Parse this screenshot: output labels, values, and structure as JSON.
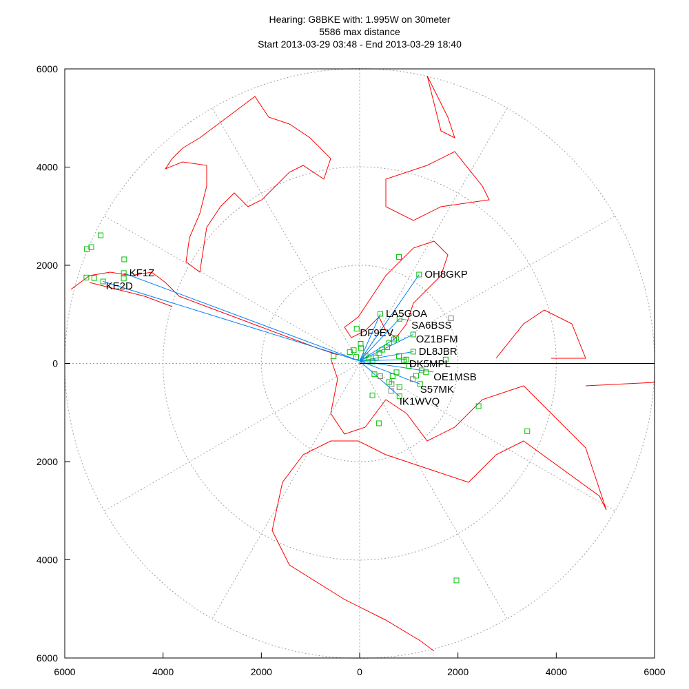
{
  "title_lines": [
    "Hearing: G8BKE with: 1.995W on 30meter",
    "5586 max distance",
    "Start 2013-03-29 03:48 - End 2013-03-29 18:40"
  ],
  "colors": {
    "coast": "#ff0000",
    "path": "#0080ff",
    "station": "#00c000",
    "other": "#808080",
    "grid": "#a0a0a0"
  },
  "chart_data": {
    "type": "scatter",
    "projection": "polar azimuthal map",
    "xlim": [
      -6000,
      6000
    ],
    "ylim": [
      -6000,
      6000
    ],
    "x_tick_labels": [
      "6000",
      "4000",
      "2000",
      "0",
      "2000",
      "4000",
      "6000"
    ],
    "y_tick_labels": [
      "6000",
      "4000",
      "2000",
      "0",
      "2000",
      "4000",
      "6000"
    ],
    "range_rings": [
      2000,
      4000,
      6000
    ],
    "grid": true,
    "home": {
      "x": 0,
      "y": 50
    },
    "labeled_stations": [
      {
        "call": "KF1Z",
        "x": -4800,
        "y": 1840
      },
      {
        "call": "KE2D",
        "x": -5220,
        "y": 1670
      },
      {
        "call": "OH8GKP",
        "x": 1210,
        "y": 1810
      },
      {
        "call": "LA5GOA",
        "x": 420,
        "y": 1010
      },
      {
        "call": "SA6BSS",
        "x": 810,
        "y": 910
      },
      {
        "call": "OZ1BFM",
        "x": 1090,
        "y": 590
      },
      {
        "call": "DF9EV",
        "x": 740,
        "y": 520
      },
      {
        "call": "DL8JBR",
        "x": 1090,
        "y": 240
      },
      {
        "call": "DK5MPL",
        "x": 950,
        "y": 80
      },
      {
        "call": "OE1MSB",
        "x": 1260,
        "y": -140
      },
      {
        "call": "S57MK",
        "x": 1230,
        "y": -420
      },
      {
        "call": "IK1WVQ",
        "x": 810,
        "y": -670
      }
    ],
    "other_stations": [
      [
        -5270,
        2610
      ],
      [
        -5550,
        2330
      ],
      [
        -5460,
        2370
      ],
      [
        -4790,
        2120
      ],
      [
        -4800,
        1730
      ],
      [
        -5560,
        1750
      ],
      [
        -5400,
        1740
      ],
      [
        -530,
        150
      ],
      [
        -60,
        710
      ],
      [
        20,
        400
      ],
      [
        30,
        310
      ],
      [
        -120,
        270
      ],
      [
        -200,
        230
      ],
      [
        -70,
        130
      ],
      [
        120,
        160
      ],
      [
        180,
        100
      ],
      [
        260,
        40
      ],
      [
        330,
        120
      ],
      [
        400,
        210
      ],
      [
        460,
        280
      ],
      [
        560,
        330
      ],
      [
        600,
        420
      ],
      [
        700,
        490
      ],
      [
        800,
        150
      ],
      [
        900,
        60
      ],
      [
        1000,
        -50
      ],
      [
        750,
        -180
      ],
      [
        670,
        -260
      ],
      [
        600,
        -380
      ],
      [
        810,
        -480
      ],
      [
        300,
        -220
      ],
      [
        260,
        -650
      ],
      [
        390,
        -1220
      ],
      [
        1750,
        80
      ],
      [
        800,
        2170
      ],
      [
        2420,
        -870
      ],
      [
        3410,
        -1380
      ],
      [
        1970,
        -4420
      ],
      [
        1350,
        -180
      ],
      [
        1150,
        -250
      ]
    ],
    "gray_stations": [
      [
        1860,
        920
      ],
      [
        420,
        -260
      ],
      [
        650,
        -420
      ],
      [
        1080,
        -320
      ],
      [
        640,
        -560
      ]
    ]
  }
}
